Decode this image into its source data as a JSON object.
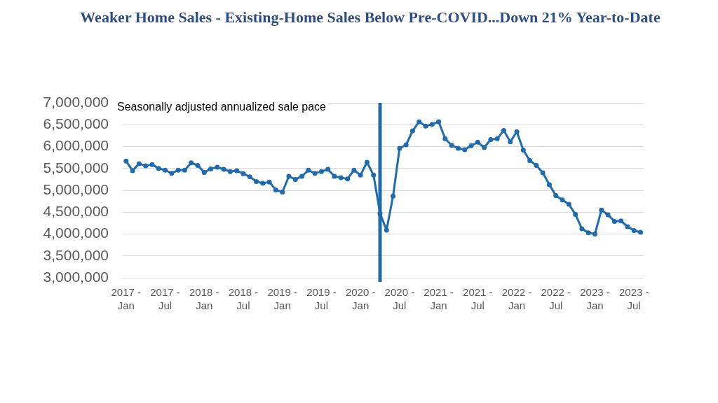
{
  "chart_data": {
    "type": "line",
    "title": "Weaker Home Sales - Existing-Home Sales Below Pre-COVID...Down 21% Year-to-Date",
    "annotations": [
      "Seasonally adjusted annualized sale pace"
    ],
    "x": [
      "2017-01",
      "2017-02",
      "2017-03",
      "2017-04",
      "2017-05",
      "2017-06",
      "2017-07",
      "2017-08",
      "2017-09",
      "2017-10",
      "2017-11",
      "2017-12",
      "2018-01",
      "2018-02",
      "2018-03",
      "2018-04",
      "2018-05",
      "2018-06",
      "2018-07",
      "2018-08",
      "2018-09",
      "2018-10",
      "2018-11",
      "2018-12",
      "2019-01",
      "2019-02",
      "2019-03",
      "2019-04",
      "2019-05",
      "2019-06",
      "2019-07",
      "2019-08",
      "2019-09",
      "2019-10",
      "2019-11",
      "2019-12",
      "2020-01",
      "2020-02",
      "2020-03",
      "2020-04",
      "2020-05",
      "2020-06",
      "2020-07",
      "2020-08",
      "2020-09",
      "2020-10",
      "2020-11",
      "2020-12",
      "2021-01",
      "2021-02",
      "2021-03",
      "2021-04",
      "2021-05",
      "2021-06",
      "2021-07",
      "2021-08",
      "2021-09",
      "2021-10",
      "2021-11",
      "2021-12",
      "2022-01",
      "2022-02",
      "2022-03",
      "2022-04",
      "2022-05",
      "2022-06",
      "2022-07",
      "2022-08",
      "2022-09",
      "2022-10",
      "2022-11",
      "2022-12",
      "2023-01",
      "2023-02",
      "2023-03",
      "2023-04",
      "2023-05",
      "2023-06",
      "2023-07",
      "2023-08"
    ],
    "values": [
      5670000,
      5450000,
      5610000,
      5560000,
      5590000,
      5500000,
      5460000,
      5390000,
      5460000,
      5460000,
      5630000,
      5570000,
      5410000,
      5490000,
      5530000,
      5480000,
      5430000,
      5450000,
      5380000,
      5310000,
      5200000,
      5160000,
      5190000,
      5010000,
      4960000,
      5320000,
      5250000,
      5320000,
      5460000,
      5390000,
      5430000,
      5480000,
      5320000,
      5290000,
      5260000,
      5460000,
      5350000,
      5640000,
      5350000,
      4470000,
      4090000,
      4870000,
      5960000,
      6040000,
      6360000,
      6570000,
      6470000,
      6510000,
      6570000,
      6180000,
      6030000,
      5960000,
      5930000,
      6020000,
      6100000,
      5980000,
      6160000,
      6180000,
      6370000,
      6110000,
      6340000,
      5920000,
      5680000,
      5570000,
      5400000,
      5130000,
      4880000,
      4780000,
      4680000,
      4450000,
      4120000,
      4030000,
      4000000,
      4550000,
      4440000,
      4290000,
      4300000,
      4170000,
      4080000,
      4040000
    ],
    "color": "#1f6bb0",
    "marker": "circle",
    "grid": "y",
    "xlim": [
      "2016-12-16",
      "2023-08-16"
    ],
    "xticks": [
      {
        "value": "2017-01",
        "label": "2017 - Jan"
      },
      {
        "value": "2017-07",
        "label": "2017 - Jul"
      },
      {
        "value": "2018-01",
        "label": "2018 - Jan"
      },
      {
        "value": "2018-07",
        "label": "2018 - Jul"
      },
      {
        "value": "2019-01",
        "label": "2019 - Jan"
      },
      {
        "value": "2019-07",
        "label": "2019 - Jul"
      },
      {
        "value": "2020-01",
        "label": "2020 - Jan"
      },
      {
        "value": "2020-07",
        "label": "2020 - Jul"
      },
      {
        "value": "2021-01",
        "label": "2021 - Jan"
      },
      {
        "value": "2021-07",
        "label": "2021 - Jul"
      },
      {
        "value": "2022-01",
        "label": "2022 - Jan"
      },
      {
        "value": "2022-07",
        "label": "2022 - Jul"
      },
      {
        "value": "2023-01",
        "label": "2023 - Jan"
      },
      {
        "value": "2023-07",
        "label": "2023 - Jul"
      }
    ],
    "ylim": [
      3000000,
      7000000
    ],
    "yticks": [
      {
        "value": 3000000,
        "label": "3,000,000"
      },
      {
        "value": 3500000,
        "label": "3,500,000"
      },
      {
        "value": 4000000,
        "label": "4,000,000"
      },
      {
        "value": 4500000,
        "label": "4,500,000"
      },
      {
        "value": 5000000,
        "label": "5,000,000"
      },
      {
        "value": 5500000,
        "label": "5,500,000"
      },
      {
        "value": 6000000,
        "label": "6,000,000"
      },
      {
        "value": 6500000,
        "label": "6,500,000"
      },
      {
        "value": 7000000,
        "label": "7,000,000"
      }
    ],
    "ref_lines": [
      {
        "axis": "x",
        "value": "2020-04",
        "color": "#1f6bb0"
      }
    ]
  }
}
